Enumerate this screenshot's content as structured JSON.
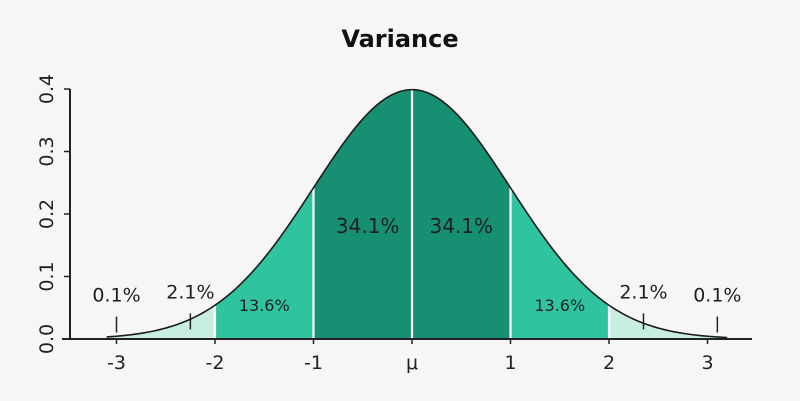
{
  "chart_data": {
    "type": "area",
    "title": "Variance",
    "distribution": "standard-normal",
    "xlim": [
      -3.1,
      3.2
    ],
    "ylim": [
      0,
      0.4
    ],
    "x_ticks": [
      {
        "value": -3,
        "label": "-3"
      },
      {
        "value": -2,
        "label": "-2"
      },
      {
        "value": -1,
        "label": "-1"
      },
      {
        "value": 0,
        "label": "μ"
      },
      {
        "value": 1,
        "label": "1"
      },
      {
        "value": 2,
        "label": "2"
      },
      {
        "value": 3,
        "label": "3"
      }
    ],
    "y_ticks": [
      {
        "value": 0,
        "label": "0.0"
      },
      {
        "value": 0.1,
        "label": "0.1"
      },
      {
        "value": 0.2,
        "label": "0.2"
      },
      {
        "value": 0.3,
        "label": "0.3"
      },
      {
        "value": 0.4,
        "label": "0.4"
      }
    ],
    "bands": [
      {
        "from": -3.1,
        "to": -2,
        "color": "#c8eee2"
      },
      {
        "from": -2,
        "to": -1,
        "color": "#2fc39f"
      },
      {
        "from": -1,
        "to": 0,
        "color": "#178f72"
      },
      {
        "from": 0,
        "to": 1,
        "color": "#178f72"
      },
      {
        "from": 1,
        "to": 2,
        "color": "#2fc39f"
      },
      {
        "from": 2,
        "to": 3.2,
        "color": "#c8eee2"
      }
    ],
    "region_labels": [
      {
        "text": "34.1%",
        "x": -0.45,
        "y": 0.17
      },
      {
        "text": "34.1%",
        "x": 0.5,
        "y": 0.17
      },
      {
        "text": "13.6%",
        "x": -1.5,
        "y": 0.045
      },
      {
        "text": "13.6%",
        "x": 1.5,
        "y": 0.045
      },
      {
        "text": "2.1%",
        "x": -2.25,
        "y": 0.065,
        "marker_x": -2.25
      },
      {
        "text": "2.1%",
        "x": 2.35,
        "y": 0.065,
        "marker_x": 2.35
      },
      {
        "text": "0.1%",
        "x": -3.0,
        "y": 0.06,
        "marker_x": -3.0
      },
      {
        "text": "0.1%",
        "x": 3.1,
        "y": 0.06,
        "marker_x": 3.1
      }
    ],
    "colors": {
      "curve": "#1c1c1c",
      "divider": "#ffffff",
      "axis": "#222222",
      "background": "#f6f6f6"
    },
    "grid": false,
    "legend": "none"
  }
}
